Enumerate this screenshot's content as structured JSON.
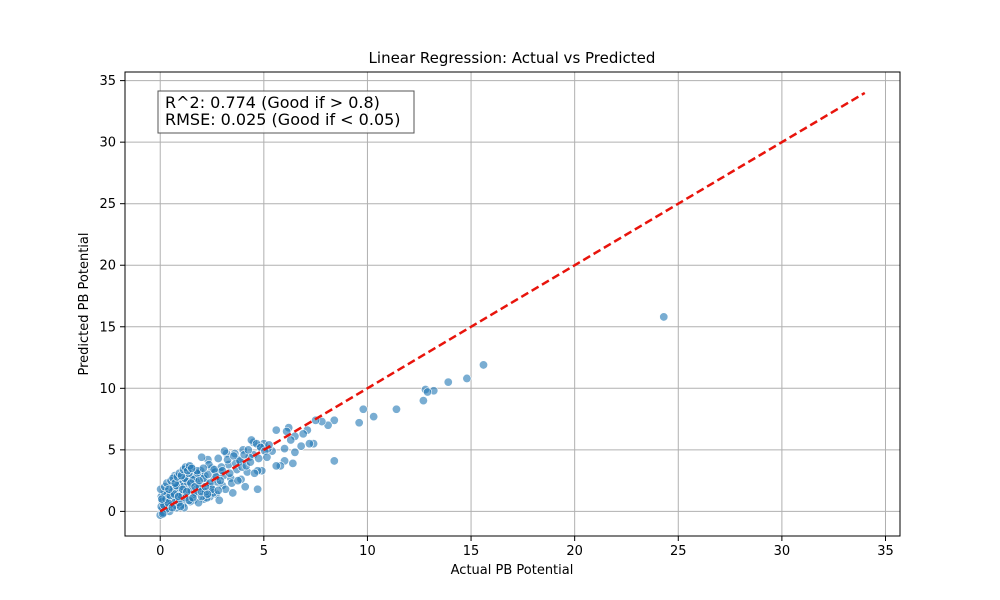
{
  "chart_data": {
    "type": "scatter",
    "title": "Linear Regression: Actual vs Predicted",
    "xlabel": "Actual PB Potential",
    "ylabel": "Predicted PB Potential",
    "xlim": [
      -1.7,
      35.7
    ],
    "ylim": [
      -2.0,
      35.7
    ],
    "xticks": [
      0,
      5,
      10,
      15,
      20,
      25,
      30,
      35
    ],
    "yticks": [
      0,
      5,
      10,
      15,
      20,
      25,
      30,
      35
    ],
    "grid": true,
    "annotation": {
      "line1": "R^2: 0.774 (Good if > 0.8)",
      "line2": "RMSE: 0.025 (Good if < 0.05)"
    },
    "reference_line": {
      "x": [
        0,
        34
      ],
      "y": [
        0,
        34
      ],
      "color": "#e8140c",
      "style": "dashed"
    },
    "point_color": "#1f77b4",
    "points": [
      [
        24.3,
        15.8
      ],
      [
        15.6,
        11.9
      ],
      [
        14.8,
        10.8
      ],
      [
        13.9,
        10.5
      ],
      [
        13.2,
        9.8
      ],
      [
        12.8,
        9.9
      ],
      [
        12.9,
        9.7
      ],
      [
        12.7,
        9.0
      ],
      [
        11.4,
        8.3
      ],
      [
        10.3,
        7.7
      ],
      [
        9.8,
        8.3
      ],
      [
        9.6,
        7.2
      ],
      [
        8.4,
        7.4
      ],
      [
        8.4,
        4.1
      ],
      [
        8.1,
        7.0
      ],
      [
        7.8,
        7.3
      ],
      [
        7.5,
        7.4
      ],
      [
        7.4,
        5.5
      ],
      [
        7.2,
        5.5
      ],
      [
        7.1,
        6.6
      ],
      [
        6.9,
        6.3
      ],
      [
        6.8,
        5.3
      ],
      [
        6.5,
        6.1
      ],
      [
        6.5,
        4.8
      ],
      [
        6.4,
        3.9
      ],
      [
        6.3,
        5.8
      ],
      [
        6.2,
        6.8
      ],
      [
        6.1,
        6.5
      ],
      [
        6.0,
        5.1
      ],
      [
        6.0,
        4.1
      ],
      [
        5.8,
        3.7
      ],
      [
        5.6,
        6.6
      ],
      [
        5.6,
        3.7
      ],
      [
        5.4,
        4.9
      ],
      [
        5.2,
        5.1
      ],
      [
        5.0,
        5.5
      ],
      [
        4.9,
        3.3
      ],
      [
        4.8,
        5.3
      ],
      [
        4.7,
        3.3
      ],
      [
        4.7,
        1.8
      ],
      [
        4.5,
        5.6
      ],
      [
        4.5,
        4.6
      ],
      [
        4.4,
        5.8
      ],
      [
        4.3,
        4.4
      ],
      [
        4.2,
        3.2
      ],
      [
        4.1,
        2.0
      ],
      [
        4.0,
        5.0
      ],
      [
        3.9,
        2.6
      ],
      [
        3.8,
        4.2
      ],
      [
        3.7,
        3.4
      ],
      [
        3.6,
        4.7
      ],
      [
        3.5,
        1.5
      ],
      [
        3.4,
        2.7
      ],
      [
        3.3,
        3.8
      ],
      [
        3.2,
        4.7
      ],
      [
        3.1,
        4.9
      ],
      [
        3.0,
        2.1
      ],
      [
        2.9,
        3.2
      ],
      [
        2.8,
        4.3
      ],
      [
        2.7,
        1.4
      ],
      [
        2.6,
        2.6
      ],
      [
        2.5,
        3.5
      ],
      [
        2.4,
        1.2
      ],
      [
        2.3,
        4.2
      ],
      [
        2.2,
        2.3
      ],
      [
        2.1,
        1.0
      ],
      [
        2.0,
        4.4
      ],
      [
        1.9,
        3.1
      ],
      [
        1.8,
        1.9
      ],
      [
        1.7,
        2.8
      ],
      [
        1.6,
        0.9
      ],
      [
        1.5,
        3.6
      ],
      [
        1.4,
        2.2
      ],
      [
        1.3,
        1.3
      ],
      [
        1.2,
        3.4
      ],
      [
        1.1,
        0.6
      ],
      [
        1.0,
        2.5
      ],
      [
        0.9,
        1.6
      ],
      [
        0.8,
        0.3
      ],
      [
        0.7,
        2.9
      ],
      [
        0.6,
        1.1
      ],
      [
        0.5,
        2.0
      ],
      [
        0.4,
        0.4
      ],
      [
        0.3,
        1.7
      ],
      [
        0.2,
        0.9
      ],
      [
        0.1,
        0.2
      ],
      [
        0.0,
        -0.3
      ],
      [
        0.05,
        1.2
      ],
      [
        0.15,
        -0.1
      ],
      [
        0.25,
        0.6
      ],
      [
        0.35,
        1.4
      ],
      [
        0.45,
        0.0
      ],
      [
        0.55,
        0.8
      ],
      [
        0.65,
        1.9
      ],
      [
        0.75,
        0.5
      ],
      [
        0.85,
        1.0
      ],
      [
        0.95,
        2.2
      ],
      [
        1.05,
        1.5
      ],
      [
        1.15,
        0.3
      ],
      [
        1.25,
        2.6
      ],
      [
        1.35,
        1.8
      ],
      [
        1.45,
        0.8
      ],
      [
        1.55,
        3.0
      ],
      [
        1.65,
        1.4
      ],
      [
        1.75,
        2.4
      ],
      [
        1.85,
        0.7
      ],
      [
        1.95,
        3.3
      ],
      [
        2.05,
        1.7
      ],
      [
        2.15,
        2.9
      ],
      [
        2.25,
        1.1
      ],
      [
        2.35,
        3.8
      ],
      [
        2.45,
        2.0
      ],
      [
        2.55,
        1.5
      ],
      [
        2.65,
        3.2
      ],
      [
        2.75,
        2.4
      ],
      [
        2.85,
        0.9
      ],
      [
        2.95,
        3.6
      ],
      [
        3.05,
        2.9
      ],
      [
        3.15,
        1.8
      ],
      [
        3.25,
        4.2
      ],
      [
        3.35,
        3.1
      ],
      [
        3.45,
        2.3
      ],
      [
        3.55,
        4.5
      ],
      [
        3.65,
        3.9
      ],
      [
        3.75,
        2.5
      ],
      [
        3.85,
        4.1
      ],
      [
        3.95,
        3.6
      ],
      [
        4.05,
        4.6
      ],
      [
        4.15,
        3.7
      ],
      [
        4.25,
        5.0
      ],
      [
        4.35,
        4.0
      ],
      [
        4.55,
        3.1
      ],
      [
        4.65,
        5.5
      ],
      [
        4.75,
        4.3
      ],
      [
        4.85,
        5.2
      ],
      [
        5.05,
        4.9
      ],
      [
        5.15,
        4.4
      ],
      [
        5.25,
        5.4
      ],
      [
        0.1,
        0.8
      ],
      [
        0.2,
        1.5
      ],
      [
        0.3,
        0.2
      ],
      [
        0.4,
        1.1
      ],
      [
        0.5,
        0.6
      ],
      [
        0.6,
        1.6
      ],
      [
        0.7,
        0.9
      ],
      [
        0.8,
        1.9
      ],
      [
        0.9,
        0.7
      ],
      [
        1.0,
        1.3
      ],
      [
        1.1,
        2.0
      ],
      [
        1.2,
        1.1
      ],
      [
        1.3,
        2.4
      ],
      [
        1.4,
        0.9
      ],
      [
        1.5,
        1.7
      ],
      [
        1.6,
        2.6
      ],
      [
        1.7,
        1.5
      ],
      [
        1.8,
        3.1
      ],
      [
        1.9,
        2.0
      ],
      [
        2.0,
        1.2
      ],
      [
        2.1,
        2.7
      ],
      [
        2.2,
        1.6
      ],
      [
        2.3,
        3.0
      ],
      [
        2.4,
        2.3
      ],
      [
        2.5,
        1.8
      ],
      [
        2.6,
        3.4
      ],
      [
        2.7,
        2.8
      ],
      [
        2.8,
        1.7
      ],
      [
        2.9,
        2.5
      ],
      [
        3.0,
        3.3
      ],
      [
        0.05,
        0.4
      ],
      [
        0.12,
        -0.2
      ],
      [
        0.18,
        0.5
      ],
      [
        0.28,
        1.0
      ],
      [
        0.38,
        0.7
      ],
      [
        0.48,
        1.3
      ],
      [
        0.58,
        0.3
      ],
      [
        0.68,
        1.4
      ],
      [
        0.78,
        2.1
      ],
      [
        0.88,
        1.2
      ],
      [
        0.98,
        0.4
      ],
      [
        1.08,
        1.8
      ],
      [
        1.18,
        2.7
      ],
      [
        1.28,
        1.6
      ],
      [
        1.38,
        3.1
      ],
      [
        1.48,
        2.3
      ],
      [
        1.58,
        1.1
      ],
      [
        1.68,
        2.0
      ],
      [
        1.78,
        3.3
      ],
      [
        1.88,
        2.5
      ],
      [
        1.98,
        1.6
      ],
      [
        2.08,
        3.5
      ],
      [
        2.18,
        2.0
      ],
      [
        2.28,
        1.4
      ],
      [
        0.02,
        1.8
      ],
      [
        0.08,
        1.0
      ],
      [
        0.22,
        2.0
      ],
      [
        0.32,
        2.3
      ],
      [
        0.42,
        1.8
      ],
      [
        0.52,
        2.5
      ],
      [
        0.62,
        2.7
      ],
      [
        0.72,
        2.3
      ],
      [
        0.82,
        2.8
      ],
      [
        0.92,
        3.1
      ],
      [
        1.02,
        2.9
      ],
      [
        1.12,
        3.4
      ],
      [
        1.22,
        3.6
      ],
      [
        1.32,
        3.3
      ],
      [
        1.42,
        3.7
      ],
      [
        1.52,
        3.5
      ]
    ]
  }
}
